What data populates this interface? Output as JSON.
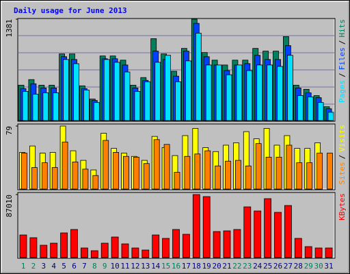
{
  "chart_data": [
    {
      "type": "bar",
      "title": "Daily usage for June 2013",
      "legend_separator": "/",
      "ylim": [
        0,
        1381
      ],
      "yticks": [
        1381
      ],
      "series": [
        {
          "name": "Hits",
          "color": "#00805c",
          "values": [
            482,
            558,
            482,
            482,
            908,
            908,
            473,
            293,
            880,
            880,
            823,
            482,
            586,
            1116,
            908,
            672,
            983,
            1381,
            927,
            823,
            757,
            823,
            823,
            983,
            946,
            946,
            1144,
            482,
            426,
            340,
            189
          ]
        },
        {
          "name": "Files",
          "color": "#0040ff",
          "values": [
            435,
            501,
            444,
            444,
            870,
            832,
            435,
            274,
            842,
            842,
            757,
            444,
            548,
            946,
            832,
            605,
            946,
            1324,
            870,
            757,
            681,
            757,
            776,
            889,
            832,
            832,
            1021,
            444,
            378,
            312,
            161
          ]
        },
        {
          "name": "Pages",
          "color": "#00e0ff",
          "values": [
            397,
            359,
            378,
            378,
            832,
            775,
            416,
            246,
            832,
            794,
            662,
            397,
            529,
            794,
            889,
            529,
            813,
            1191,
            757,
            757,
            624,
            757,
            681,
            757,
            757,
            738,
            889,
            340,
            321,
            246,
            113
          ]
        }
      ]
    },
    {
      "type": "bar",
      "legend_separator": "/",
      "ylim": [
        0,
        79
      ],
      "yticks": [
        79
      ],
      "series": [
        {
          "name": "Visits",
          "color": "#ffff00",
          "values": [
            46,
            54,
            45,
            46,
            79,
            48,
            36,
            24,
            70,
            51,
            45,
            41,
            36,
            66,
            52,
            42,
            67,
            76,
            52,
            47,
            55,
            58,
            72,
            63,
            76,
            55,
            67,
            51,
            51,
            58,
            0
          ]
        },
        {
          "name": "Sites",
          "color": "#ff8000",
          "values": [
            45,
            27,
            33,
            27,
            59,
            34,
            25,
            17,
            61,
            46,
            41,
            40,
            32,
            62,
            56,
            21,
            41,
            44,
            48,
            29,
            35,
            36,
            29,
            57,
            40,
            40,
            55,
            33,
            33,
            45,
            45
          ]
        }
      ]
    },
    {
      "type": "bar",
      "ylim": [
        0,
        87010
      ],
      "yticks": [
        87010
      ],
      "series": [
        {
          "name": "KBytes",
          "color": "#ff0000",
          "values": [
            31212,
            27428,
            17024,
            19862,
            34049,
            38778,
            13241,
            9458,
            19862,
            28374,
            18916,
            13241,
            10404,
            31212,
            26482,
            38778,
            32157,
            87010,
            84176,
            35940,
            36886,
            38778,
            69989,
            64314,
            81339,
            62423,
            71880,
            26482,
            15133,
            13241,
            13241
          ]
        }
      ],
      "categories": [
        "1",
        "2",
        "3",
        "4",
        "5",
        "6",
        "7",
        "8",
        "9",
        "10",
        "11",
        "12",
        "13",
        "14",
        "15",
        "16",
        "17",
        "18",
        "19",
        "20",
        "21",
        "22",
        "23",
        "24",
        "25",
        "26",
        "27",
        "28",
        "29",
        "30",
        "31"
      ],
      "category_colors": [
        "#00805c",
        "#00805c",
        "#000080",
        "#000080",
        "#000080",
        "#000080",
        "#000080",
        "#00805c",
        "#00805c",
        "#000080",
        "#000080",
        "#000080",
        "#000080",
        "#000080",
        "#00805c",
        "#00805c",
        "#000080",
        "#000080",
        "#000080",
        "#000080",
        "#000080",
        "#00805c",
        "#00805c",
        "#000080",
        "#000080",
        "#000080",
        "#000080",
        "#000080",
        "#00805c",
        "#00805c",
        "#000080"
      ]
    }
  ]
}
